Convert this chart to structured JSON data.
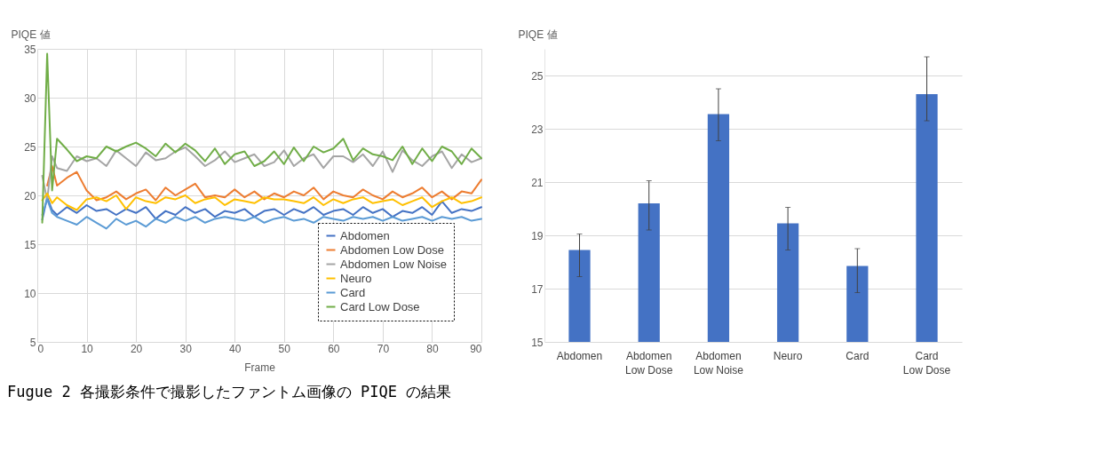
{
  "chart_data": [
    {
      "type": "line",
      "xlabel": "Frame",
      "ylabel": "PIQE 値",
      "xlim": [
        0,
        90
      ],
      "ylim": [
        5,
        35
      ],
      "xticks": [
        0,
        10,
        20,
        30,
        40,
        50,
        60,
        70,
        80,
        90
      ],
      "yticks": [
        5,
        10,
        15,
        20,
        25,
        30,
        35
      ],
      "grid": true,
      "legend": "bottom right",
      "annotations": [
        "Fugue 2 各撮影条件で撮影したファントム画像の PIQE の結果"
      ],
      "x": [
        1,
        2,
        3,
        4,
        6,
        8,
        10,
        12,
        14,
        16,
        18,
        20,
        22,
        24,
        26,
        28,
        30,
        32,
        34,
        36,
        38,
        40,
        42,
        44,
        46,
        48,
        50,
        52,
        54,
        56,
        58,
        60,
        62,
        64,
        66,
        68,
        70,
        72,
        74,
        76,
        78,
        80,
        82,
        84,
        86,
        88,
        90
      ],
      "series": [
        {
          "name": "Abdomen",
          "color": "#4472c4",
          "values": [
            17.5,
            19.8,
            18.5,
            18.0,
            18.8,
            18.2,
            19.0,
            18.4,
            18.6,
            18.0,
            18.6,
            18.2,
            18.8,
            17.6,
            18.4,
            18.0,
            18.8,
            18.2,
            18.6,
            17.8,
            18.4,
            18.2,
            18.6,
            17.8,
            18.4,
            18.6,
            18.0,
            18.6,
            18.2,
            18.8,
            18.0,
            18.4,
            18.6,
            18.0,
            18.8,
            18.2,
            18.6,
            17.8,
            18.4,
            18.2,
            18.8,
            18.0,
            19.4,
            18.2,
            18.6,
            18.4,
            18.8
          ]
        },
        {
          "name": "Abdomen Low Dose",
          "color": "#ed7d31",
          "values": [
            null,
            21.0,
            23.0,
            21.0,
            21.8,
            22.4,
            20.5,
            19.5,
            19.8,
            20.4,
            19.6,
            20.2,
            20.6,
            19.5,
            20.8,
            20.0,
            20.6,
            21.2,
            19.8,
            20.0,
            19.8,
            20.6,
            19.8,
            20.4,
            19.6,
            20.2,
            19.8,
            20.4,
            20.0,
            20.8,
            19.6,
            20.4,
            20.0,
            19.8,
            20.6,
            20.0,
            19.6,
            20.4,
            19.8,
            20.2,
            20.8,
            19.8,
            20.4,
            19.6,
            20.4,
            20.2,
            21.6
          ]
        },
        {
          "name": "Abdomen Low Noise",
          "color": "#a5a5a5",
          "values": [
            22.0,
            19.5,
            24.0,
            22.8,
            22.5,
            24.0,
            23.5,
            23.8,
            23.0,
            24.6,
            23.8,
            23.0,
            24.4,
            23.6,
            23.8,
            24.5,
            24.9,
            24.0,
            23.0,
            23.6,
            24.5,
            23.4,
            23.8,
            24.2,
            23.0,
            23.4,
            24.6,
            23.0,
            23.8,
            24.2,
            22.8,
            24.0,
            24.0,
            23.4,
            24.2,
            23.0,
            24.5,
            22.4,
            24.6,
            23.6,
            23.0,
            24.0,
            24.5,
            22.8,
            24.2,
            23.4,
            23.8
          ]
        },
        {
          "name": "Neuro",
          "color": "#ffc000",
          "values": [
            19.5,
            20.2,
            19.2,
            19.8,
            19.0,
            18.5,
            19.6,
            19.8,
            19.4,
            20.0,
            18.6,
            19.8,
            19.4,
            19.2,
            19.8,
            19.6,
            20.0,
            19.2,
            19.6,
            19.8,
            19.0,
            19.6,
            19.4,
            19.2,
            19.8,
            19.6,
            19.6,
            19.4,
            19.2,
            19.8,
            19.0,
            19.6,
            19.2,
            19.6,
            19.8,
            19.2,
            19.4,
            19.6,
            19.0,
            19.4,
            19.8,
            18.8,
            19.4,
            19.8,
            19.2,
            19.4,
            19.8
          ]
        },
        {
          "name": "Card",
          "color": "#5b9bd5",
          "values": [
            18.0,
            19.6,
            18.2,
            17.8,
            17.4,
            17.0,
            17.8,
            17.2,
            16.6,
            17.6,
            17.0,
            17.4,
            16.8,
            17.6,
            17.2,
            17.8,
            17.4,
            17.8,
            17.2,
            17.6,
            17.8,
            17.6,
            17.4,
            17.8,
            17.2,
            17.6,
            17.8,
            17.4,
            17.6,
            17.2,
            17.8,
            17.6,
            17.4,
            17.8,
            17.6,
            17.8,
            17.4,
            17.8,
            17.4,
            17.6,
            17.8,
            17.4,
            17.8,
            17.6,
            17.8,
            17.4,
            17.6
          ]
        },
        {
          "name": "Card Low Dose",
          "color": "#70ad47",
          "values": [
            17.2,
            34.5,
            20.5,
            25.8,
            24.7,
            23.5,
            24.0,
            23.8,
            25.0,
            24.5,
            25.0,
            25.4,
            24.8,
            24.0,
            25.3,
            24.4,
            25.3,
            24.6,
            23.5,
            24.8,
            23.2,
            24.2,
            24.5,
            23.0,
            23.5,
            24.5,
            23.2,
            24.9,
            23.5,
            25.0,
            24.4,
            24.8,
            25.8,
            23.6,
            24.8,
            24.2,
            24.0,
            23.6,
            25.0,
            23.2,
            24.8,
            23.5,
            25.0,
            24.5,
            23.2,
            24.8,
            23.8
          ]
        }
      ]
    },
    {
      "type": "bar",
      "ylabel": "PIQE 値",
      "ylim": [
        15,
        26
      ],
      "yticks": [
        15,
        17,
        19,
        21,
        23,
        25
      ],
      "grid": "y",
      "color": "#4472c4",
      "categories": [
        "Abdomen",
        "Abdomen Low Dose",
        "Abdomen Low Noise",
        "Neuro",
        "Card",
        "Card Low Dose"
      ],
      "values": [
        18.45,
        20.2,
        23.55,
        19.45,
        17.85,
        24.3
      ],
      "errors": [
        [
          17.45,
          19.05
        ],
        [
          19.2,
          21.05
        ],
        [
          22.55,
          24.5
        ],
        [
          18.45,
          20.05
        ],
        [
          16.85,
          18.5
        ],
        [
          23.3,
          25.7
        ]
      ]
    }
  ]
}
